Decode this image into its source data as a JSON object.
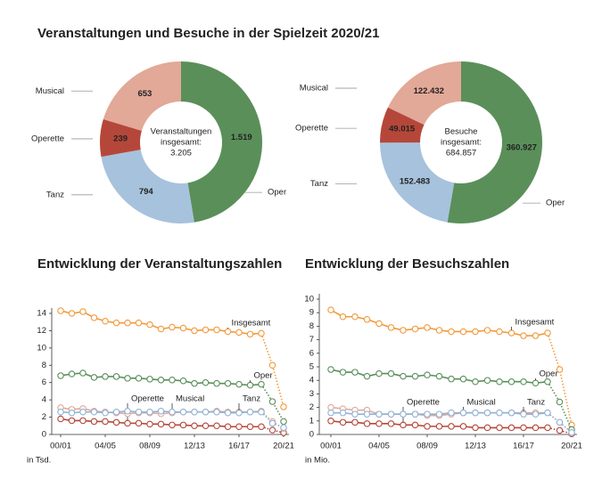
{
  "title": "Veranstaltungen und Besuche in der Spielzeit 2020/21",
  "chart_data": [
    {
      "type": "donut",
      "categories": [
        "Oper",
        "Tanz",
        "Operette",
        "Musical"
      ],
      "values": [
        1519,
        794,
        239,
        653
      ],
      "value_labels": [
        "1.519",
        "794",
        "239",
        "653"
      ],
      "colors": [
        "#5a8f5a",
        "#a7c2dc",
        "#b5473a",
        "#e2a898"
      ],
      "center_text": [
        "Veranstaltungen",
        "insgesamt:",
        "3.205"
      ]
    },
    {
      "type": "donut",
      "categories": [
        "Oper",
        "Tanz",
        "Operette",
        "Musical"
      ],
      "values": [
        360927,
        152483,
        49015,
        122432
      ],
      "value_labels": [
        "360.927",
        "152.483",
        "49.015",
        "122.432"
      ],
      "colors": [
        "#5a8f5a",
        "#a7c2dc",
        "#b5473a",
        "#e2a898"
      ],
      "center_text": [
        "Besuche",
        "insgesamt:",
        "684.857"
      ]
    },
    {
      "type": "line",
      "title": "Entwicklung der Veranstaltungszahlen",
      "unit_note": "in Tsd.",
      "categories": [
        "00/01",
        null,
        null,
        null,
        "04/05",
        null,
        null,
        null,
        "08/09",
        null,
        null,
        null,
        "12/13",
        null,
        null,
        null,
        "16/17",
        null,
        null,
        null,
        "20/21"
      ],
      "ylim": [
        0,
        14
      ],
      "yticks": [
        0,
        2,
        4,
        6,
        8,
        10,
        12,
        14
      ],
      "dotted_from_index": 18,
      "series": [
        {
          "name": "Insgesamt",
          "color": "#f39a3c",
          "values": [
            14.3,
            14.0,
            14.2,
            13.5,
            13.1,
            12.9,
            12.9,
            12.9,
            12.7,
            12.2,
            12.4,
            12.3,
            12.0,
            12.1,
            12.1,
            11.9,
            11.8,
            11.6,
            11.7,
            8.0,
            3.2
          ]
        },
        {
          "name": "Oper",
          "color": "#5a8f5a",
          "values": [
            6.8,
            7.0,
            7.1,
            6.6,
            6.7,
            6.7,
            6.5,
            6.5,
            6.4,
            6.3,
            6.3,
            6.2,
            5.9,
            6.0,
            5.9,
            5.9,
            5.8,
            5.7,
            5.8,
            3.8,
            1.5
          ]
        },
        {
          "name": "Operette",
          "color": "#b5473a",
          "values": [
            1.8,
            1.6,
            1.6,
            1.5,
            1.5,
            1.4,
            1.3,
            1.3,
            1.2,
            1.2,
            1.1,
            1.1,
            1.0,
            1.0,
            1.0,
            0.9,
            0.9,
            0.9,
            0.9,
            0.5,
            0.2
          ]
        },
        {
          "name": "Musical",
          "color": "#e2a898",
          "values": [
            3.1,
            2.9,
            3.0,
            2.7,
            2.6,
            2.5,
            2.4,
            2.5,
            2.5,
            2.4,
            2.5,
            2.6,
            2.6,
            2.6,
            2.7,
            2.6,
            2.6,
            2.6,
            2.7,
            1.5,
            0.7
          ]
        },
        {
          "name": "Tanz",
          "color": "#8fb3d6",
          "values": [
            2.6,
            2.5,
            2.6,
            2.6,
            2.5,
            2.6,
            2.7,
            2.6,
            2.6,
            2.7,
            2.6,
            2.6,
            2.6,
            2.6,
            2.6,
            2.5,
            2.5,
            2.6,
            2.6,
            1.3,
            0.8
          ]
        }
      ]
    },
    {
      "type": "line",
      "title": "Entwicklung der Besuchszahlen",
      "unit_note": "in Mio.",
      "categories": [
        "00/01",
        null,
        null,
        null,
        "04/05",
        null,
        null,
        null,
        "08/09",
        null,
        null,
        null,
        "12/13",
        null,
        null,
        null,
        "16/17",
        null,
        null,
        null,
        "20/21"
      ],
      "ylim": [
        0,
        10
      ],
      "yticks": [
        0,
        1,
        2,
        3,
        4,
        5,
        6,
        7,
        8,
        9,
        10
      ],
      "dotted_from_index": 18,
      "series": [
        {
          "name": "Insgesamt",
          "color": "#f39a3c",
          "values": [
            9.2,
            8.7,
            8.7,
            8.5,
            8.2,
            7.9,
            7.7,
            7.8,
            7.9,
            7.7,
            7.6,
            7.6,
            7.6,
            7.7,
            7.6,
            7.5,
            7.3,
            7.3,
            7.5,
            4.8,
            0.7
          ]
        },
        {
          "name": "Oper",
          "color": "#5a8f5a",
          "values": [
            4.8,
            4.6,
            4.6,
            4.3,
            4.5,
            4.5,
            4.3,
            4.3,
            4.4,
            4.3,
            4.1,
            4.1,
            3.9,
            4.0,
            3.9,
            3.9,
            3.9,
            3.8,
            3.9,
            2.4,
            0.36
          ]
        },
        {
          "name": "Operette",
          "color": "#b5473a",
          "values": [
            1.0,
            0.9,
            0.9,
            0.8,
            0.8,
            0.8,
            0.7,
            0.7,
            0.6,
            0.6,
            0.6,
            0.6,
            0.5,
            0.5,
            0.5,
            0.5,
            0.5,
            0.5,
            0.5,
            0.3,
            0.05
          ]
        },
        {
          "name": "Musical",
          "color": "#e2a898",
          "values": [
            2.0,
            1.9,
            1.8,
            1.8,
            1.5,
            1.5,
            1.5,
            1.5,
            1.4,
            1.4,
            1.5,
            1.6,
            1.6,
            1.6,
            1.6,
            1.6,
            1.6,
            1.6,
            1.6,
            0.9,
            0.12
          ]
        },
        {
          "name": "Tanz",
          "color": "#8fb3d6",
          "values": [
            1.6,
            1.6,
            1.5,
            1.5,
            1.5,
            1.5,
            1.5,
            1.5,
            1.5,
            1.5,
            1.6,
            1.6,
            1.6,
            1.6,
            1.6,
            1.6,
            1.5,
            1.5,
            1.6,
            0.9,
            0.15
          ]
        }
      ]
    }
  ]
}
